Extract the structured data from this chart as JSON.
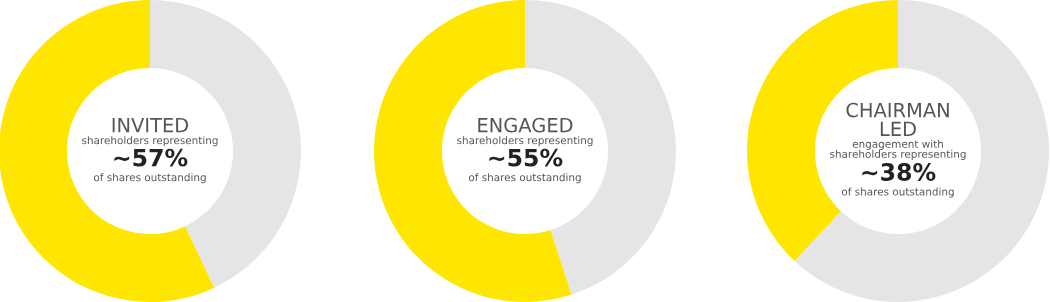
{
  "chart_data": [
    {
      "type": "donut",
      "title": "INVITED",
      "subtitle": "shareholders representing",
      "categories": [
        null,
        null
      ],
      "values": [
        57,
        43
      ],
      "colors": [
        "#ffe600",
        "#e5e5e7"
      ],
      "annotations": [
        "~57%",
        "of shares outstanding"
      ]
    },
    {
      "type": "donut",
      "title": "ENGAGED",
      "subtitle": "shareholders representing",
      "categories": [
        null,
        null
      ],
      "values": [
        55,
        45
      ],
      "colors": [
        "#ffe600",
        "#e5e5e7"
      ],
      "annotations": [
        "~55%",
        "of shares outstanding"
      ]
    },
    {
      "type": "donut",
      "title": "CHAIRMAN\nLED",
      "subtitle": "engagement with\nshareholders representing",
      "categories": [
        null,
        null
      ],
      "values": [
        38,
        62
      ],
      "colors": [
        "#ffe600",
        "#e5e5e7"
      ],
      "annotations": [
        "~38%",
        "of shares outstanding"
      ]
    }
  ]
}
